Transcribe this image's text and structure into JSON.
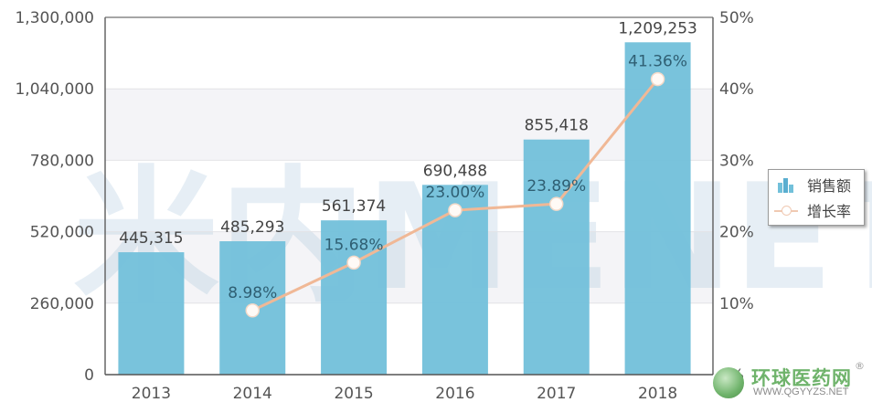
{
  "chart_data": {
    "type": "bar",
    "title": "",
    "xlabel": "",
    "ylabel": "",
    "categories": [
      "2013",
      "2014",
      "2015",
      "2016",
      "2017",
      "2018"
    ],
    "series": [
      {
        "name": "销售额",
        "type": "bar",
        "axis": "left",
        "color": "#72c0da",
        "values": [
          445315,
          485293,
          561374,
          690488,
          855418,
          1209253
        ],
        "labels": [
          "445,315",
          "485,293",
          "561,374",
          "690,488",
          "855,418",
          "1,209,253"
        ]
      },
      {
        "name": "增长率",
        "type": "line",
        "axis": "right",
        "color": "#f0b896",
        "values": [
          null,
          8.98,
          15.68,
          23.0,
          23.89,
          41.36
        ],
        "labels": [
          "",
          "8.98%",
          "15.68%",
          "23.00%",
          "23.89%",
          "41.36%"
        ]
      }
    ],
    "y_left": {
      "ylim": [
        0,
        1300000
      ],
      "ticks": [
        0,
        260000,
        520000,
        780000,
        1040000,
        1300000
      ],
      "tick_labels": [
        "0",
        "260,000",
        "520,000",
        "780,000",
        "1,040,000",
        "1,300,000"
      ]
    },
    "y_right": {
      "ylim": [
        0,
        50
      ],
      "ticks": [
        0,
        10,
        20,
        30,
        40,
        50
      ],
      "tick_labels": [
        "0%",
        "10%",
        "20%",
        "30%",
        "40%",
        "50%"
      ]
    },
    "grid": true,
    "legend": {
      "placement": "right",
      "entries": [
        "销售额",
        "增长率"
      ]
    }
  },
  "watermark": {
    "text": "米内MENET"
  },
  "logo": {
    "name": "环球医药网",
    "url": "WWW.QGYYZS.NET",
    "registered": "®"
  },
  "colors": {
    "bar": "#72c0da",
    "line": "#f0b896",
    "band": "#f4f4f7",
    "axis": "#555555"
  }
}
